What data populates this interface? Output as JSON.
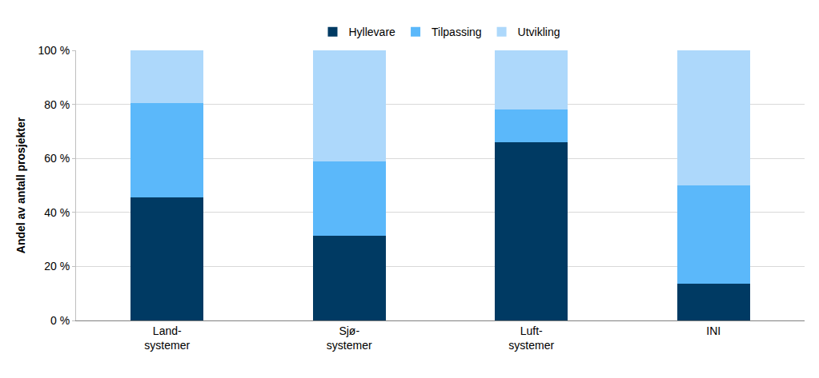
{
  "chart_data": {
    "type": "bar",
    "stacked": true,
    "categories": [
      "Land-\nsystemer",
      "Sjø-\nsystemer",
      "Luft-\nsystemer",
      "INI"
    ],
    "series": [
      {
        "name": "Hyllevare",
        "color": "#003a63",
        "values": [
          45.5,
          31.5,
          66,
          13.5
        ]
      },
      {
        "name": "Tilpassing",
        "color": "#5bb8fa",
        "values": [
          35,
          27.5,
          12,
          36.5
        ]
      },
      {
        "name": "Utvikling",
        "color": "#add8fb",
        "values": [
          19.5,
          41,
          22,
          50
        ]
      }
    ],
    "y_label": "Andel av antall prosjekter",
    "ylim": [
      0,
      100
    ],
    "yticks": [
      {
        "value": 0,
        "label": "0 %"
      },
      {
        "value": 20,
        "label": "20 %"
      },
      {
        "value": 40,
        "label": "40 %"
      },
      {
        "value": 60,
        "label": "60 %"
      },
      {
        "value": 80,
        "label": "80 %"
      },
      {
        "value": 100,
        "label": "100 %"
      }
    ],
    "grid": true,
    "legend": "top"
  }
}
